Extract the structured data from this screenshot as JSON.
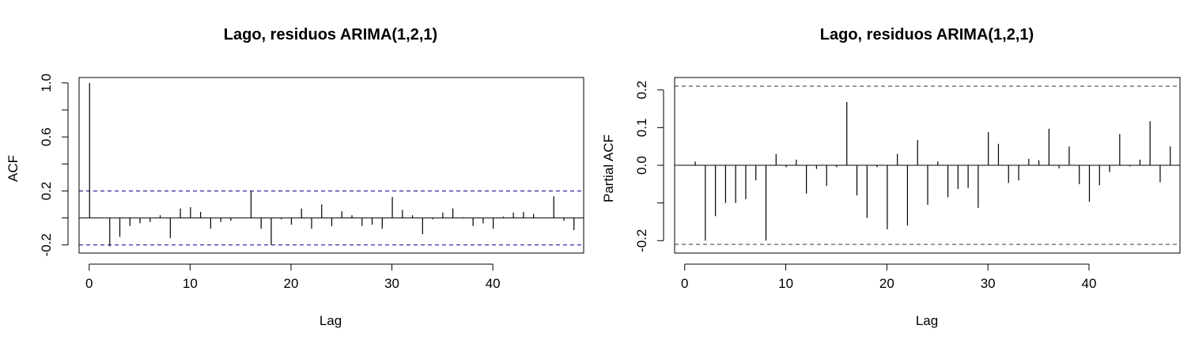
{
  "chart_data": [
    {
      "type": "bar",
      "title": "Lago, residuos ARIMA(1,2,1)",
      "xlabel": "Lag",
      "ylabel": "ACF",
      "xlim": [
        -1,
        49
      ],
      "ylim": [
        -0.26,
        1.04
      ],
      "xticks": [
        0,
        10,
        20,
        30,
        40
      ],
      "yticks": [
        -0.2,
        0.2,
        0.6,
        1.0
      ],
      "yticks_minor": [
        0.0,
        0.4,
        0.8
      ],
      "ytick_labels": [
        "-0.2",
        "0.2",
        "0.6",
        "1.0"
      ],
      "conf_limit": 0.2,
      "conf_color": "#00008b",
      "lags": [
        0,
        1,
        2,
        3,
        4,
        5,
        6,
        7,
        8,
        9,
        10,
        11,
        12,
        13,
        14,
        15,
        16,
        17,
        18,
        19,
        20,
        21,
        22,
        23,
        24,
        25,
        26,
        27,
        28,
        29,
        30,
        31,
        32,
        33,
        34,
        35,
        36,
        37,
        38,
        39,
        40,
        41,
        42,
        43,
        44,
        45,
        46,
        47,
        48
      ],
      "values": [
        1.0,
        0.003,
        -0.21,
        -0.14,
        -0.06,
        -0.04,
        -0.03,
        0.02,
        -0.15,
        0.07,
        0.08,
        0.045,
        -0.08,
        -0.03,
        -0.02,
        0.0,
        0.2,
        -0.08,
        -0.2,
        -0.01,
        -0.05,
        0.07,
        -0.08,
        0.1,
        -0.06,
        0.05,
        0.02,
        -0.06,
        -0.05,
        -0.08,
        0.155,
        0.06,
        0.02,
        -0.12,
        -0.01,
        0.04,
        0.07,
        0.005,
        -0.06,
        -0.04,
        -0.08,
        0.01,
        0.04,
        0.045,
        0.03,
        0.0,
        0.16,
        -0.02,
        -0.09
      ]
    },
    {
      "type": "bar",
      "title": "Lago, residuos ARIMA(1,2,1)",
      "xlabel": "Lag",
      "ylabel": "Partial ACF",
      "xlim": [
        -1,
        49
      ],
      "ylim": [
        -0.233,
        0.233
      ],
      "xticks": [
        0,
        10,
        20,
        30,
        40
      ],
      "yticks": [
        -0.2,
        0.0,
        0.1,
        0.2
      ],
      "yticks_minor": [
        -0.1
      ],
      "ytick_labels": [
        "-0.2",
        "0.0",
        "0.1",
        "0.2"
      ],
      "conf_limit": 0.21,
      "conf_color": "#333333",
      "lags": [
        1,
        2,
        3,
        4,
        5,
        6,
        7,
        8,
        9,
        10,
        11,
        12,
        13,
        14,
        15,
        16,
        17,
        18,
        19,
        20,
        21,
        22,
        23,
        24,
        25,
        26,
        27,
        28,
        29,
        30,
        31,
        32,
        33,
        34,
        35,
        36,
        37,
        38,
        39,
        40,
        41,
        42,
        43,
        44,
        45,
        46,
        47,
        48
      ],
      "values": [
        0.01,
        -0.2,
        -0.135,
        -0.1,
        -0.1,
        -0.09,
        -0.04,
        -0.2,
        0.03,
        -0.005,
        0.015,
        -0.075,
        -0.01,
        -0.055,
        -0.005,
        0.168,
        -0.08,
        -0.14,
        -0.005,
        -0.17,
        0.03,
        -0.16,
        0.067,
        -0.105,
        0.01,
        -0.085,
        -0.063,
        -0.06,
        -0.113,
        0.088,
        0.057,
        -0.047,
        -0.04,
        0.017,
        0.013,
        0.097,
        -0.008,
        0.05,
        -0.05,
        -0.097,
        -0.053,
        -0.018,
        0.083,
        -0.003,
        0.015,
        0.117,
        -0.045,
        0.05
      ]
    }
  ]
}
